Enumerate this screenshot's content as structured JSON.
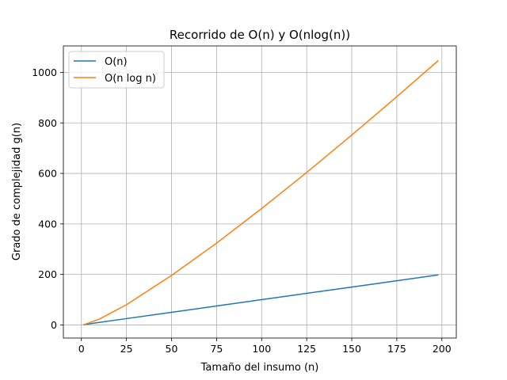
{
  "chart_data": {
    "type": "line",
    "title": "Recorrido de O(n) y O(nlog(n))",
    "xlabel": "Tamaño del insumo (n)",
    "ylabel": "Grado de complejidad g(n)",
    "xlim": [
      -10,
      208
    ],
    "ylim": [
      -52,
      1105
    ],
    "xticks": [
      0,
      25,
      50,
      75,
      100,
      125,
      150,
      175,
      200
    ],
    "yticks": [
      0,
      200,
      400,
      600,
      800,
      1000
    ],
    "grid": true,
    "legend": "upper left",
    "series": [
      {
        "name": "O(n)",
        "color": "#1f77b4",
        "x": [
          1,
          25,
          50,
          75,
          100,
          125,
          150,
          175,
          198
        ],
        "y": [
          1,
          25,
          50,
          75,
          100,
          125,
          150,
          175,
          198
        ]
      },
      {
        "name": "O(n log n)",
        "color": "#ff7f0e",
        "x": [
          1,
          10,
          25,
          50,
          75,
          100,
          125,
          150,
          175,
          198
        ],
        "y": [
          0,
          23,
          80,
          196,
          324,
          461,
          604,
          752,
          904,
          1047
        ]
      }
    ]
  }
}
